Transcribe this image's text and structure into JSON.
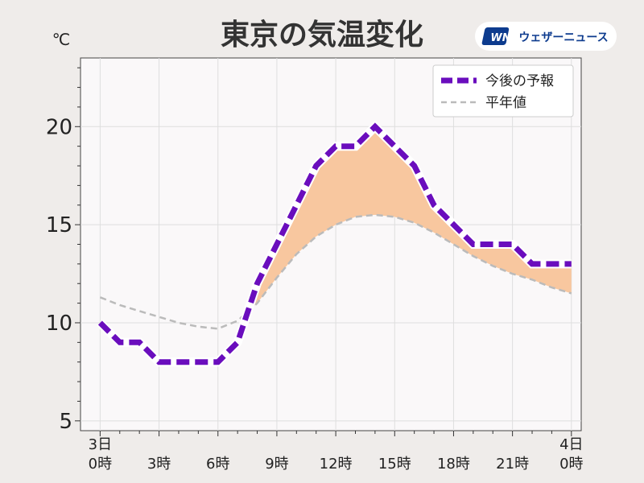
{
  "chart_data": {
    "type": "line",
    "title": "東京の気温変化",
    "unit": "℃",
    "ylim": [
      4.5,
      23.5
    ],
    "yticks": [
      5,
      10,
      15,
      20
    ],
    "xlim": [
      -1,
      24.5
    ],
    "xticks": [
      {
        "x": 0,
        "lines": [
          "3日",
          "0時"
        ]
      },
      {
        "x": 3,
        "lines": [
          "",
          "3時"
        ]
      },
      {
        "x": 6,
        "lines": [
          "",
          "6時"
        ]
      },
      {
        "x": 9,
        "lines": [
          "",
          "9時"
        ]
      },
      {
        "x": 12,
        "lines": [
          "",
          "12時"
        ]
      },
      {
        "x": 15,
        "lines": [
          "",
          "15時"
        ]
      },
      {
        "x": 18,
        "lines": [
          "",
          "18時"
        ]
      },
      {
        "x": 21,
        "lines": [
          "",
          "21時"
        ]
      },
      {
        "x": 24,
        "lines": [
          "4日",
          "0時"
        ]
      }
    ],
    "grid": true,
    "legend_position": "top-right",
    "fill_between": {
      "color": "#f8c79f",
      "note": "予報が平年値を上回る範囲"
    },
    "series": [
      {
        "name": "今後の予報",
        "style": "thick-dashed",
        "color": "#6a0dbd",
        "x": [
          0,
          1,
          2,
          3,
          4,
          5,
          6,
          7,
          8,
          9,
          10,
          11,
          12,
          13,
          14,
          15,
          16,
          17,
          18,
          19,
          20,
          21,
          22,
          23,
          24
        ],
        "y": [
          10,
          9,
          9,
          8,
          8,
          8,
          8,
          9,
          12,
          14,
          16,
          18,
          19,
          19,
          20,
          19,
          18,
          16,
          15,
          14,
          14,
          14,
          13,
          13,
          13
        ]
      },
      {
        "name": "平年値",
        "style": "thin-dashed",
        "color": "#bbbbbb",
        "x": [
          0,
          1,
          2,
          3,
          4,
          5,
          6,
          7,
          8,
          9,
          10,
          11,
          12,
          13,
          14,
          15,
          16,
          17,
          18,
          19,
          20,
          21,
          22,
          23,
          24
        ],
        "y": [
          11.3,
          10.9,
          10.6,
          10.3,
          10.0,
          9.8,
          9.7,
          10.1,
          11.0,
          12.3,
          13.5,
          14.4,
          15.0,
          15.4,
          15.5,
          15.4,
          15.1,
          14.6,
          14.0,
          13.4,
          12.9,
          12.5,
          12.2,
          11.8,
          11.5
        ]
      }
    ]
  },
  "brand": {
    "logo_mark": "WN",
    "name": "ウェザーニュース",
    "color": "#0d3b8e"
  }
}
